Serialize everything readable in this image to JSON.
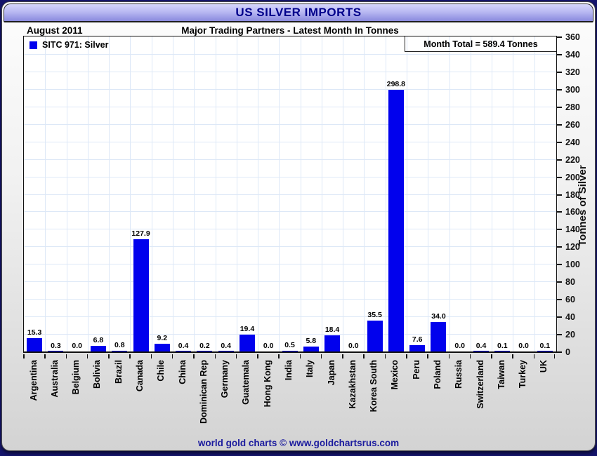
{
  "page": {
    "title": "US SILVER IMPORTS",
    "date_label": "August 2011",
    "subtitle": "Major Trading Partners - Latest Month In Tonnes",
    "footer": "world gold charts © www.goldchartsrus.com"
  },
  "legend": {
    "label": "SITC 971: Silver",
    "marker_color": "#0101ed"
  },
  "annotation": {
    "month_total_label": "Month Total = 589.4 Tonnes",
    "month_total_value": 589.4
  },
  "chart_data": {
    "type": "bar",
    "title": "US SILVER IMPORTS",
    "subtitle": "Major Trading Partners - Latest Month In Tonnes",
    "period": "August 2011",
    "series_name": "SITC 971: Silver",
    "categories": [
      "Argentina",
      "Australia",
      "Belgium",
      "Bolivia",
      "Brazil",
      "Canada",
      "Chile",
      "China",
      "Dominican Rep",
      "Germany",
      "Guatemala",
      "Hong Kong",
      "India",
      "Italy",
      "Japan",
      "Kazakhstan",
      "Korea South",
      "Mexico",
      "Peru",
      "Poland",
      "Russia",
      "Switzerland",
      "Taiwan",
      "Turkey",
      "UK"
    ],
    "values": [
      15.3,
      0.3,
      0.0,
      6.8,
      0.8,
      127.9,
      9.2,
      0.4,
      0.2,
      0.4,
      19.4,
      0.0,
      0.5,
      5.8,
      18.4,
      0.0,
      35.5,
      298.8,
      7.6,
      34.0,
      0.0,
      0.4,
      0.1,
      0.0,
      0.1
    ],
    "xlabel": "",
    "ylabel": "Tonnes of Silver",
    "ylim": [
      0,
      360
    ],
    "ytick_step": 20,
    "bar_color": "#0101ed",
    "grid": true,
    "legend_position": "top-left"
  }
}
